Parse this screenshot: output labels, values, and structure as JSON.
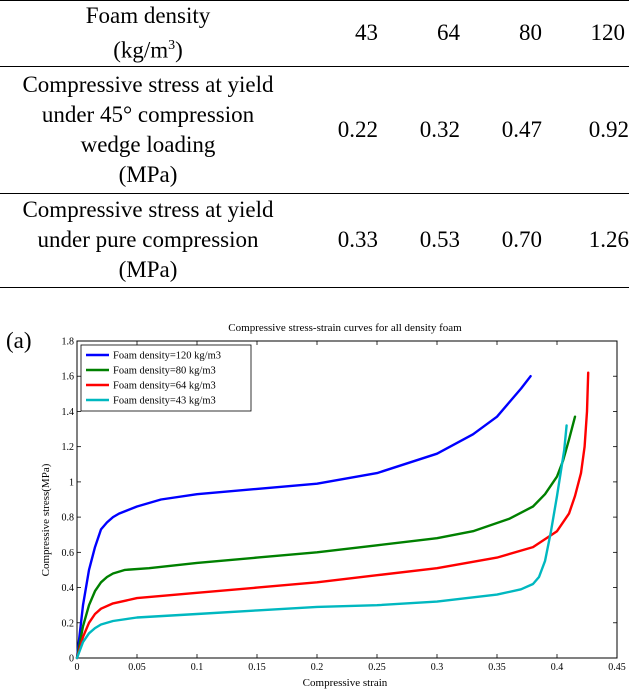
{
  "table": {
    "density_label": [
      "Foam density",
      "(kg/m",
      "3",
      ")"
    ],
    "density_values": [
      "43",
      "64",
      "80",
      "120"
    ],
    "wedge_label": [
      "Compressive stress at yield",
      "under 45° compression",
      "wedge loading",
      "(MPa)"
    ],
    "wedge_values": [
      "0.22",
      "0.32",
      "0.47",
      "0.92"
    ],
    "pure_label": [
      "Compressive stress at yield",
      "under pure compression",
      "(MPa)"
    ],
    "pure_values": [
      "0.33",
      "0.53",
      "0.70",
      "1.26"
    ]
  },
  "panel_label": "(a)",
  "chart_data": {
    "type": "line",
    "title": "Compressive stress-strain curves for all density foam",
    "xlabel": "Compressive strain",
    "ylabel": "Compressive stress(MPa)",
    "xlim": [
      0,
      0.45
    ],
    "ylim": [
      0,
      1.8
    ],
    "xticks": [
      0,
      0.05,
      0.1,
      0.15,
      0.2,
      0.25,
      0.3,
      0.35,
      0.4,
      0.45
    ],
    "xtick_labels": [
      "0",
      "0.05",
      "0.1",
      "0.15",
      "0.2",
      "0.25",
      "0.3",
      "0.35",
      "0.4",
      "0.45"
    ],
    "yticks": [
      0,
      0.2,
      0.4,
      0.6,
      0.8,
      1.0,
      1.2,
      1.4,
      1.6,
      1.8
    ],
    "ytick_labels": [
      "0",
      "0.2",
      "0.4",
      "0.6",
      "0.8",
      "1",
      "1.2",
      "1.4",
      "1.6",
      "1.8"
    ],
    "legend_position": "top-left",
    "series": [
      {
        "name": "Foam density=120 kg/m3",
        "color": "#0000ff",
        "x": [
          0,
          0.005,
          0.01,
          0.015,
          0.02,
          0.025,
          0.03,
          0.035,
          0.05,
          0.07,
          0.1,
          0.15,
          0.2,
          0.25,
          0.3,
          0.33,
          0.35,
          0.36,
          0.37,
          0.378
        ],
        "y": [
          0,
          0.3,
          0.5,
          0.63,
          0.73,
          0.77,
          0.8,
          0.82,
          0.86,
          0.9,
          0.93,
          0.96,
          0.99,
          1.05,
          1.16,
          1.27,
          1.37,
          1.45,
          1.53,
          1.6
        ]
      },
      {
        "name": "Foam density=80 kg/m3",
        "color": "#008000",
        "x": [
          0,
          0.005,
          0.01,
          0.015,
          0.02,
          0.025,
          0.03,
          0.04,
          0.06,
          0.1,
          0.15,
          0.2,
          0.25,
          0.3,
          0.33,
          0.36,
          0.38,
          0.39,
          0.4,
          0.405,
          0.41,
          0.415
        ],
        "y": [
          0,
          0.18,
          0.3,
          0.38,
          0.43,
          0.46,
          0.48,
          0.5,
          0.51,
          0.54,
          0.57,
          0.6,
          0.64,
          0.68,
          0.72,
          0.79,
          0.86,
          0.93,
          1.03,
          1.12,
          1.24,
          1.37
        ]
      },
      {
        "name": "Foam density=64 kg/m3",
        "color": "#ff0000",
        "x": [
          0,
          0.005,
          0.01,
          0.015,
          0.02,
          0.03,
          0.05,
          0.1,
          0.15,
          0.2,
          0.25,
          0.3,
          0.35,
          0.38,
          0.4,
          0.41,
          0.415,
          0.42,
          0.423,
          0.425,
          0.426
        ],
        "y": [
          0,
          0.12,
          0.2,
          0.25,
          0.28,
          0.31,
          0.34,
          0.37,
          0.4,
          0.43,
          0.47,
          0.51,
          0.57,
          0.63,
          0.72,
          0.82,
          0.92,
          1.05,
          1.2,
          1.4,
          1.62
        ]
      },
      {
        "name": "Foam density=43 kg/m3",
        "color": "#00b8c0",
        "x": [
          0,
          0.005,
          0.01,
          0.015,
          0.02,
          0.03,
          0.05,
          0.1,
          0.15,
          0.2,
          0.25,
          0.3,
          0.35,
          0.37,
          0.38,
          0.385,
          0.39,
          0.395,
          0.4,
          0.403,
          0.406,
          0.408
        ],
        "y": [
          0,
          0.09,
          0.14,
          0.17,
          0.19,
          0.21,
          0.23,
          0.25,
          0.27,
          0.29,
          0.3,
          0.32,
          0.36,
          0.39,
          0.42,
          0.46,
          0.55,
          0.72,
          0.92,
          1.05,
          1.18,
          1.32
        ]
      }
    ]
  }
}
